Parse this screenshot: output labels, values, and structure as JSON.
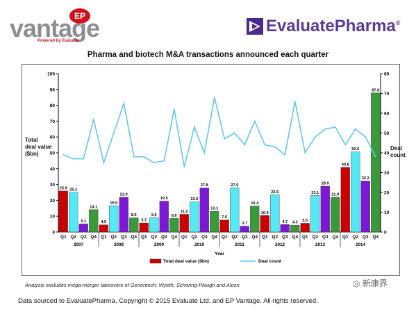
{
  "logos": {
    "vantage_word": "vantage",
    "vantage_badge": "EP",
    "vantage_tagline": "Powered by Evaluate",
    "evaluate_word": "EvaluatePharma",
    "evaluate_mark": "®"
  },
  "colors": {
    "q1": "#cc0000",
    "q2": "#55e8f5",
    "q3": "#7a18d6",
    "q4": "#3a9a3a",
    "line": "#5ec8f0"
  },
  "footer": {
    "note": "Analysis excludes mega-merger takeovers of Genentech, Wyeth, Schering-Plough and Alcon",
    "source": "Data sourced to EvaluatePharma. Copyright © 2015 Evaluate Ltd. and EP Vantage. All rights reserved.",
    "watermark": "新康界"
  },
  "chart_data": {
    "type": "bar",
    "title": "Pharma and biotech M&A transactions announced each quarter",
    "xlabel": "Year",
    "ylabel": "Total deal value ($bn)",
    "y2label": "Deal count",
    "ylim": [
      0,
      100
    ],
    "y2lim": [
      0,
      80
    ],
    "yticks": [
      0,
      10,
      20,
      30,
      40,
      50,
      60,
      70,
      80,
      90,
      100
    ],
    "y2ticks": [
      0,
      10,
      20,
      30,
      40,
      50,
      60,
      70,
      80
    ],
    "quarters": [
      "Q1",
      "Q2",
      "Q3",
      "Q4"
    ],
    "years": [
      "2007",
      "2008",
      "2009",
      "2010",
      "2011",
      "2012",
      "2013",
      "2014"
    ],
    "categories": [
      "Q1 2007",
      "Q2 2007",
      "Q3 2007",
      "Q4 2007",
      "Q1 2008",
      "Q2 2008",
      "Q3 2008",
      "Q4 2008",
      "Q1 2009",
      "Q2 2009",
      "Q3 2009",
      "Q4 2009",
      "Q1 2010",
      "Q2 2010",
      "Q3 2010",
      "Q4 2010",
      "Q1 2011",
      "Q2 2011",
      "Q3 2011",
      "Q4 2011",
      "Q1 2012",
      "Q2 2012",
      "Q3 2012",
      "Q4 2012",
      "Q1 2013",
      "Q2 2013",
      "Q3 2013",
      "Q4 2013",
      "Q1 2014",
      "Q2 2014",
      "Q3 2014",
      "Q4 2014"
    ],
    "series": [
      {
        "name": "Total deal value ($bn)",
        "type": "bar",
        "axis": "left",
        "values": [
          25.9,
          25.1,
          5.1,
          14.1,
          4.5,
          16.6,
          21.9,
          8.9,
          5.7,
          9.0,
          19.5,
          8.6,
          11.2,
          19.0,
          27.8,
          13.1,
          7.6,
          27.9,
          3.7,
          16.4,
          10.4,
          23.5,
          4.7,
          4.3,
          5.5,
          23.1,
          28.9,
          21.9,
          40.8,
          50.6,
          32.2,
          87.8
        ],
        "labels": [
          "25.9",
          "25.1",
          "5.1",
          "14.1",
          "4.5",
          "16.6",
          "21.9",
          "8.9",
          "5.7",
          "9.0",
          "19.5",
          "8.6",
          "11.2",
          "19.0",
          "27.8",
          "13.1",
          "7.6",
          "27.9",
          "3.7",
          "16.4",
          "10.4",
          "23.5",
          "4.7",
          "4.3",
          "5.5",
          "23.1",
          "28.9",
          "21.9",
          "40.8",
          "50.6",
          "32.2",
          "87.8"
        ]
      },
      {
        "name": "Deal count",
        "type": "line",
        "axis": "right",
        "values": [
          39,
          37,
          37,
          57,
          35,
          50,
          65,
          38,
          38,
          35,
          36,
          62,
          33,
          53,
          40,
          68,
          47,
          50,
          44,
          56,
          44,
          43,
          39,
          66,
          40,
          48,
          52,
          53,
          44,
          52,
          48,
          38
        ]
      }
    ],
    "legend_position": "bottom"
  }
}
